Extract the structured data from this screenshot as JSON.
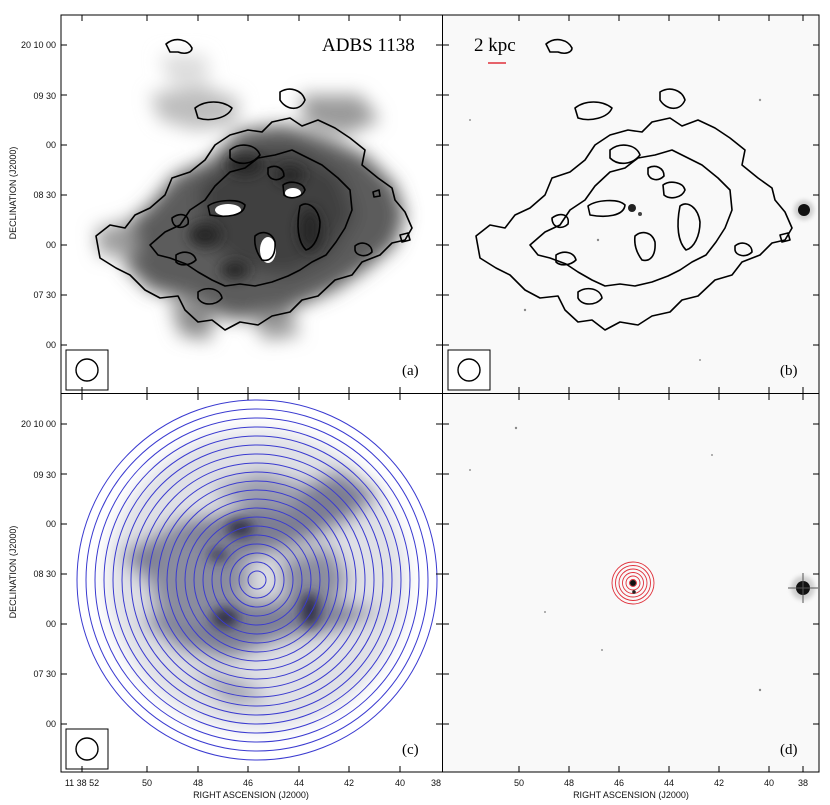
{
  "figure": {
    "title": "ADBS 1138",
    "scale_bar_label": "2 kpc",
    "panel_labels": [
      "(a)",
      "(b)",
      "(c)",
      "(d)"
    ],
    "y_axis_label": "DECLINATION (J2000)",
    "x_axis_label": "RIGHT ASCENSION (J2000)",
    "y_tick_labels": [
      "20 10 00",
      "09 30",
      "00",
      "08 30",
      "00",
      "07 30",
      "00"
    ],
    "x_tick_labels": [
      "11 38 52",
      "50",
      "48",
      "46",
      "44",
      "42",
      "40",
      "38"
    ],
    "colors": {
      "tilted_ring_contours": "#3a3ad0",
      "point_model_rings": "#e0303a",
      "scale_bar": "#e0303a",
      "contours": "#000000"
    }
  }
}
